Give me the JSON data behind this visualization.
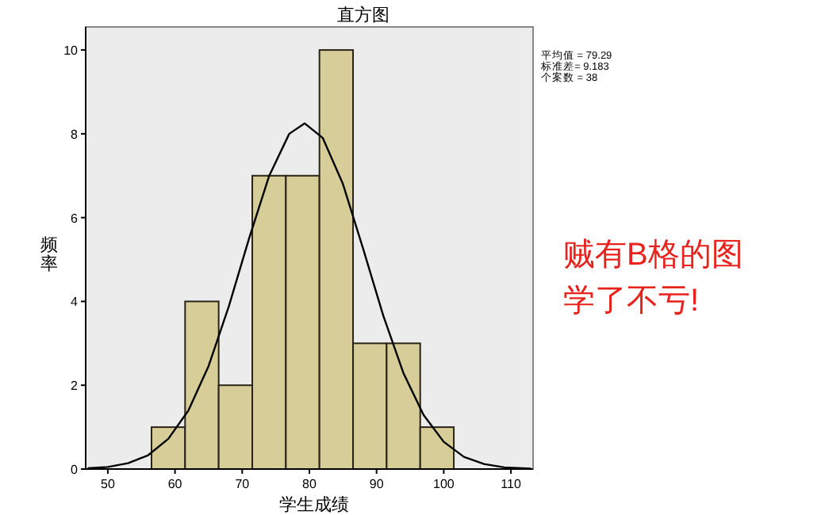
{
  "chart_data": {
    "type": "histogram",
    "title": "直方图",
    "xlabel": "学生成绩",
    "ylabel": "频率",
    "bins": [
      56.5,
      61.5,
      66.5,
      71.5,
      76.5,
      81.5,
      86.5,
      91.5,
      96.5,
      101.5
    ],
    "values": [
      1,
      4,
      2,
      7,
      7,
      10,
      3,
      3,
      1
    ],
    "color": "#d6cd98",
    "series": [
      {
        "type": "line",
        "color": "#000000",
        "x": [
          47,
          50,
          53,
          56,
          59,
          62,
          65,
          68,
          71,
          74,
          77,
          79.29,
          82,
          85,
          88,
          91,
          94,
          97,
          100,
          103,
          106,
          109,
          113
        ],
        "values": [
          0.02,
          0.05,
          0.14,
          0.33,
          0.72,
          1.4,
          2.46,
          3.88,
          5.49,
          6.99,
          8.0,
          8.25,
          7.9,
          6.8,
          5.26,
          3.66,
          2.29,
          1.29,
          0.65,
          0.29,
          0.12,
          0.04,
          0.01
        ]
      }
    ],
    "xlim": [
      46.7,
      113.3
    ],
    "ylim": [
      0,
      10.55
    ],
    "xticks": [
      50,
      60,
      70,
      80,
      90,
      100,
      110
    ],
    "yticks": [
      0,
      2,
      4,
      6,
      8,
      10
    ],
    "annotations": [
      "平均值 = 79.29",
      "标准差= 9.183",
      "个案数 = 38",
      "贼有B格的图",
      "学了不亏!"
    ]
  }
}
